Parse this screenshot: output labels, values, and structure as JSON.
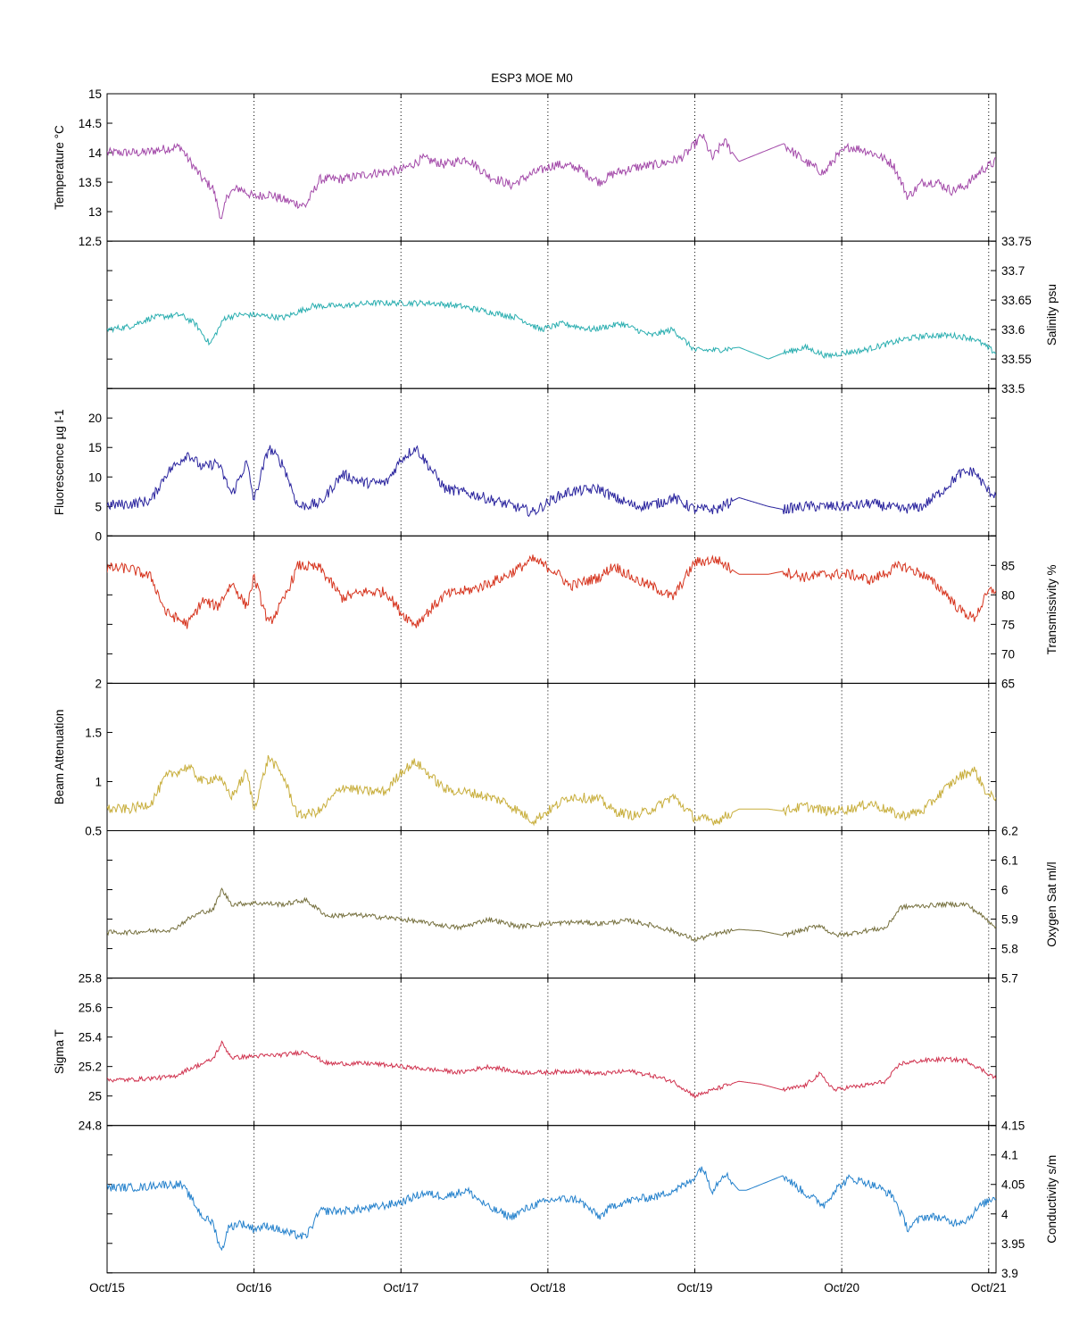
{
  "title": "ESP3 MOE   M0",
  "chart_data": {
    "type": "line",
    "title": "ESP3 MOE   M0",
    "x_ticks": [
      "Oct/15",
      "Oct/16",
      "Oct/17",
      "Oct/18",
      "Oct/19",
      "Oct/20",
      "Oct/21"
    ],
    "x_range_days": [
      0,
      6.05
    ],
    "grid": "vertical dotted lines at day ticks",
    "panels": [
      {
        "name": "temperature",
        "ylabel": "Temperature °C",
        "axis_side": "left",
        "color": "#a34aa9",
        "ylim": [
          12.5,
          15
        ],
        "yticks": [
          "12.5",
          "13",
          "13.5",
          "14",
          "14.5",
          "15"
        ],
        "label_ticks": [
          "12.5",
          "13",
          "13.5",
          "14",
          "14.5",
          "15"
        ],
        "x": [
          0,
          0.25,
          0.35,
          0.5,
          0.55,
          0.65,
          0.72,
          0.78,
          0.82,
          0.9,
          1.0,
          1.1,
          1.2,
          1.35,
          1.45,
          1.6,
          1.8,
          2.0,
          2.15,
          2.3,
          2.45,
          2.6,
          2.75,
          2.9,
          3.05,
          3.2,
          3.35,
          3.45,
          3.6,
          3.75,
          3.9,
          3.97,
          4.05,
          4.12,
          4.2,
          4.3,
          4.35,
          4.45,
          4.6,
          4.75,
          4.88,
          4.95,
          5.05,
          5.15,
          5.25,
          5.35,
          5.45,
          5.55,
          5.65,
          5.75,
          5.85,
          5.95,
          6.05
        ],
        "noise": 0.08,
        "values": [
          14.0,
          14.0,
          14.05,
          14.1,
          13.9,
          13.55,
          13.4,
          12.85,
          13.3,
          13.4,
          13.25,
          13.3,
          13.2,
          13.1,
          13.55,
          13.55,
          13.65,
          13.7,
          13.9,
          13.8,
          13.9,
          13.6,
          13.45,
          13.65,
          13.8,
          13.75,
          13.5,
          13.65,
          13.75,
          13.8,
          13.9,
          14.05,
          14.3,
          13.9,
          14.2,
          13.85,
          13.9,
          14.0,
          14.15,
          13.85,
          13.65,
          13.9,
          14.1,
          14.05,
          13.95,
          13.8,
          13.25,
          13.5,
          13.5,
          13.35,
          13.45,
          13.7,
          13.85
        ]
      },
      {
        "name": "salinity",
        "ylabel": "Salinity psu",
        "axis_side": "right",
        "color": "#2aaeb0",
        "ylim": [
          33.5,
          33.75
        ],
        "yticks": [
          "33.5",
          "33.55",
          "33.6",
          "33.65",
          "33.7",
          "33.75"
        ],
        "label_ticks": [
          "33.5",
          "33.55",
          "33.6",
          "33.65",
          "33.7",
          "33.75"
        ],
        "x": [
          0,
          0.15,
          0.3,
          0.5,
          0.6,
          0.7,
          0.8,
          0.9,
          1.0,
          1.2,
          1.4,
          1.6,
          1.8,
          2.0,
          2.2,
          2.4,
          2.6,
          2.8,
          2.95,
          3.1,
          3.3,
          3.5,
          3.7,
          3.85,
          4.0,
          4.15,
          4.3,
          4.5,
          4.6,
          4.75,
          4.9,
          5.0,
          5.15,
          5.3,
          5.45,
          5.6,
          5.75,
          5.9,
          6.05
        ],
        "noise": 0.005,
        "values": [
          33.6,
          33.605,
          33.62,
          33.625,
          33.61,
          33.575,
          33.62,
          33.625,
          33.625,
          33.62,
          33.64,
          33.64,
          33.645,
          33.645,
          33.645,
          33.64,
          33.63,
          33.62,
          33.6,
          33.61,
          33.6,
          33.61,
          33.59,
          33.6,
          33.565,
          33.565,
          33.57,
          33.55,
          33.56,
          33.57,
          33.555,
          33.56,
          33.565,
          33.575,
          33.585,
          33.59,
          33.59,
          33.585,
          33.56
        ]
      },
      {
        "name": "fluorescence",
        "ylabel": "Fluorescence µg l-1",
        "axis_side": "left",
        "color": "#2a249e",
        "ylim": [
          0,
          25
        ],
        "yticks": [
          "0",
          "5",
          "10",
          "15",
          "20",
          "25"
        ],
        "label_ticks": [
          "0",
          "5",
          "10",
          "15",
          "20"
        ],
        "x": [
          0,
          0.15,
          0.3,
          0.4,
          0.55,
          0.65,
          0.75,
          0.85,
          0.95,
          1.0,
          1.1,
          1.2,
          1.3,
          1.45,
          1.6,
          1.75,
          1.9,
          2.0,
          2.1,
          2.3,
          2.5,
          2.7,
          2.9,
          3.05,
          3.15,
          3.35,
          3.45,
          3.6,
          3.75,
          3.85,
          4.0,
          4.15,
          4.3,
          4.5,
          4.6,
          4.75,
          4.9,
          5.05,
          5.2,
          5.4,
          5.55,
          5.7,
          5.8,
          5.9,
          6.0,
          6.05
        ],
        "noise": 0.9,
        "values": [
          5.2,
          5.4,
          6.0,
          10.5,
          14.0,
          11.5,
          12.5,
          7.0,
          12.5,
          6.0,
          15.0,
          12.0,
          5.0,
          5.5,
          10.5,
          9.0,
          9.0,
          13.0,
          15.0,
          8.0,
          7.0,
          5.5,
          4.0,
          6.5,
          7.5,
          8.0,
          6.5,
          5.0,
          5.5,
          6.5,
          4.5,
          4.5,
          6.5,
          5.0,
          4.5,
          5.0,
          5.0,
          5.0,
          5.5,
          4.5,
          5.0,
          8.0,
          10.5,
          11.0,
          7.5,
          7.0
        ]
      },
      {
        "name": "transmissivity",
        "ylabel": "Transmissivity %",
        "axis_side": "right",
        "color": "#d6341e",
        "ylim": [
          65,
          90
        ],
        "yticks": [
          "65",
          "70",
          "75",
          "80",
          "85",
          "90"
        ],
        "label_ticks": [
          "65",
          "70",
          "75",
          "80",
          "85"
        ],
        "x": [
          0,
          0.15,
          0.3,
          0.4,
          0.55,
          0.65,
          0.75,
          0.85,
          0.95,
          1.0,
          1.1,
          1.2,
          1.3,
          1.45,
          1.6,
          1.75,
          1.9,
          2.0,
          2.1,
          2.3,
          2.5,
          2.7,
          2.9,
          3.05,
          3.15,
          3.35,
          3.45,
          3.6,
          3.75,
          3.85,
          4.0,
          4.15,
          4.3,
          4.5,
          4.6,
          4.75,
          4.9,
          5.05,
          5.2,
          5.4,
          5.55,
          5.7,
          5.8,
          5.9,
          6.0,
          6.05
        ],
        "noise": 0.9,
        "values": [
          84.5,
          84.5,
          83.0,
          77.0,
          75.0,
          79.0,
          78.0,
          82.0,
          78.0,
          83.0,
          75.0,
          79.0,
          85.0,
          84.5,
          79.5,
          80.5,
          80.5,
          77.0,
          75.0,
          80.0,
          81.0,
          83.0,
          86.0,
          84.0,
          81.5,
          83.0,
          85.0,
          82.5,
          81.0,
          79.5,
          85.5,
          86.0,
          83.5,
          83.5,
          84.0,
          83.0,
          83.5,
          83.5,
          82.5,
          85.0,
          83.5,
          80.5,
          77.5,
          76.0,
          80.5,
          81.0
        ]
      },
      {
        "name": "beam_attenuation",
        "ylabel": "Beam Attenuation",
        "axis_side": "left",
        "color": "#c8ae3c",
        "ylim": [
          0.5,
          2
        ],
        "yticks": [
          "0.5",
          "1",
          "1.5",
          "2"
        ],
        "label_ticks": [
          "0.5",
          "1",
          "1.5",
          "2"
        ],
        "x": [
          0,
          0.15,
          0.3,
          0.4,
          0.55,
          0.65,
          0.75,
          0.85,
          0.95,
          1.0,
          1.1,
          1.2,
          1.3,
          1.45,
          1.6,
          1.75,
          1.9,
          2.0,
          2.1,
          2.3,
          2.5,
          2.7,
          2.9,
          3.05,
          3.15,
          3.35,
          3.45,
          3.6,
          3.75,
          3.85,
          4.0,
          4.15,
          4.3,
          4.5,
          4.6,
          4.75,
          4.9,
          5.05,
          5.2,
          5.4,
          5.55,
          5.7,
          5.8,
          5.9,
          6.0,
          6.05
        ],
        "noise": 0.05,
        "values": [
          0.72,
          0.72,
          0.78,
          1.05,
          1.15,
          1.0,
          1.05,
          0.85,
          1.1,
          0.72,
          1.25,
          1.05,
          0.65,
          0.7,
          0.95,
          0.9,
          0.9,
          1.1,
          1.2,
          0.92,
          0.88,
          0.8,
          0.6,
          0.75,
          0.85,
          0.82,
          0.7,
          0.65,
          0.75,
          0.85,
          0.63,
          0.6,
          0.72,
          0.72,
          0.7,
          0.75,
          0.7,
          0.72,
          0.78,
          0.65,
          0.7,
          0.92,
          1.05,
          1.12,
          0.85,
          0.85
        ]
      },
      {
        "name": "oxygen",
        "ylabel": "Oxygen Sat ml/l",
        "axis_side": "right",
        "color": "#76703e",
        "ylim": [
          5.7,
          6.2
        ],
        "yticks": [
          "5.7",
          "5.8",
          "5.9",
          "6",
          "6.1",
          "6.2"
        ],
        "label_ticks": [
          "5.7",
          "5.8",
          "5.9",
          "6",
          "6.1",
          "6.2"
        ],
        "x": [
          0,
          0.15,
          0.3,
          0.45,
          0.55,
          0.65,
          0.72,
          0.78,
          0.85,
          1.0,
          1.2,
          1.35,
          1.5,
          1.65,
          1.8,
          2.0,
          2.2,
          2.4,
          2.6,
          2.8,
          3.0,
          3.2,
          3.35,
          3.55,
          3.7,
          3.85,
          4.0,
          4.15,
          4.3,
          4.45,
          4.6,
          4.75,
          4.85,
          4.95,
          5.05,
          5.15,
          5.3,
          5.4,
          5.55,
          5.7,
          5.85,
          6.05
        ],
        "noise": 0.008,
        "values": [
          5.855,
          5.855,
          5.86,
          5.865,
          5.9,
          5.925,
          5.93,
          6.0,
          5.95,
          5.955,
          5.95,
          5.965,
          5.91,
          5.915,
          5.91,
          5.9,
          5.885,
          5.87,
          5.9,
          5.875,
          5.885,
          5.89,
          5.885,
          5.895,
          5.88,
          5.86,
          5.83,
          5.85,
          5.865,
          5.86,
          5.845,
          5.865,
          5.88,
          5.845,
          5.85,
          5.86,
          5.87,
          5.94,
          5.945,
          5.95,
          5.95,
          5.875
        ]
      },
      {
        "name": "sigma_t",
        "ylabel": "Sigma T",
        "axis_side": "left",
        "color": "#d0334f",
        "ylim": [
          24.8,
          25.8
        ],
        "yticks": [
          "24.8",
          "25",
          "25.2",
          "25.4",
          "25.6",
          "25.8"
        ],
        "label_ticks": [
          "24.8",
          "25",
          "25.2",
          "25.4",
          "25.6",
          "25.8"
        ],
        "x": [
          0,
          0.15,
          0.3,
          0.45,
          0.55,
          0.65,
          0.72,
          0.78,
          0.85,
          1.0,
          1.2,
          1.35,
          1.5,
          1.65,
          1.8,
          2.0,
          2.2,
          2.4,
          2.6,
          2.8,
          3.0,
          3.2,
          3.35,
          3.55,
          3.7,
          3.85,
          4.0,
          4.15,
          4.3,
          4.45,
          4.6,
          4.75,
          4.85,
          4.95,
          5.05,
          5.15,
          5.3,
          5.4,
          5.55,
          5.7,
          5.85,
          6.05
        ],
        "noise": 0.015,
        "values": [
          25.11,
          25.11,
          25.12,
          25.13,
          25.18,
          25.22,
          25.25,
          25.36,
          25.26,
          25.27,
          25.28,
          25.3,
          25.22,
          25.22,
          25.22,
          25.2,
          25.18,
          25.16,
          25.2,
          25.16,
          25.16,
          25.17,
          25.15,
          25.17,
          25.14,
          25.1,
          25.0,
          25.05,
          25.1,
          25.08,
          25.04,
          25.07,
          25.15,
          25.04,
          25.06,
          25.07,
          25.1,
          25.22,
          25.24,
          25.25,
          25.24,
          25.12
        ]
      },
      {
        "name": "conductivity",
        "ylabel": "Conductivity s/m",
        "axis_side": "right",
        "color": "#2481cc",
        "ylim": [
          3.9,
          4.15
        ],
        "yticks": [
          "3.9",
          "3.95",
          "4",
          "4.05",
          "4.1",
          "4.15"
        ],
        "label_ticks": [
          "3.9",
          "3.95",
          "4",
          "4.05",
          "4.1",
          "4.15"
        ],
        "x": [
          0,
          0.25,
          0.35,
          0.5,
          0.55,
          0.65,
          0.72,
          0.78,
          0.82,
          0.9,
          1.0,
          1.1,
          1.2,
          1.35,
          1.45,
          1.6,
          1.8,
          2.0,
          2.15,
          2.3,
          2.45,
          2.6,
          2.75,
          2.9,
          3.05,
          3.2,
          3.35,
          3.45,
          3.6,
          3.75,
          3.9,
          3.97,
          4.05,
          4.12,
          4.2,
          4.3,
          4.35,
          4.45,
          4.6,
          4.75,
          4.88,
          4.95,
          5.05,
          5.15,
          5.25,
          5.35,
          5.45,
          5.55,
          5.65,
          5.75,
          5.85,
          5.95,
          6.05
        ],
        "noise": 0.007,
        "values": [
          4.045,
          4.045,
          4.05,
          4.05,
          4.035,
          3.995,
          3.985,
          3.935,
          3.975,
          3.985,
          3.975,
          3.98,
          3.97,
          3.96,
          4.005,
          4.005,
          4.01,
          4.02,
          4.035,
          4.03,
          4.04,
          4.01,
          3.995,
          4.015,
          4.025,
          4.025,
          3.995,
          4.015,
          4.025,
          4.03,
          4.045,
          4.055,
          4.08,
          4.04,
          4.07,
          4.04,
          4.04,
          4.05,
          4.065,
          4.035,
          4.015,
          4.04,
          4.06,
          4.055,
          4.045,
          4.03,
          3.975,
          3.995,
          3.995,
          3.985,
          3.99,
          4.015,
          4.03
        ]
      }
    ]
  }
}
